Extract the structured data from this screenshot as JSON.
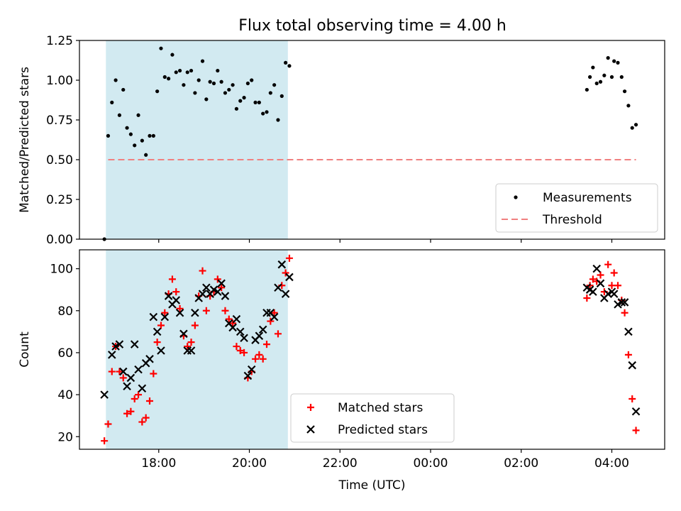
{
  "title": "Flux total observing time = 4.00 h",
  "chart_data": [
    {
      "type": "scatter",
      "ylabel": "Matched/Predicted stars",
      "x_range": [
        "16:15",
        "05:10"
      ],
      "ylim": [
        0,
        1.25
      ],
      "yticks": [
        0.0,
        0.25,
        0.5,
        0.75,
        1.0,
        1.25
      ],
      "ytick_labels": [
        "0.00",
        "0.25",
        "0.50",
        "0.75",
        "1.00",
        "1.25"
      ],
      "shaded_interval": [
        "16:50",
        "20:51"
      ],
      "shaded_color": "#add8e6",
      "legend_position": "lower-right",
      "series": [
        {
          "name": "Measurements",
          "kind": "dot",
          "color": "#000000",
          "points": [
            [
              "16:48",
              0.0
            ],
            [
              "16:53",
              0.65
            ],
            [
              "16:58",
              0.86
            ],
            [
              "17:03",
              1.0
            ],
            [
              "17:08",
              0.78
            ],
            [
              "17:13",
              0.94
            ],
            [
              "17:18",
              0.7
            ],
            [
              "17:23",
              0.66
            ],
            [
              "17:28",
              0.59
            ],
            [
              "17:33",
              0.78
            ],
            [
              "17:38",
              0.62
            ],
            [
              "17:43",
              0.53
            ],
            [
              "17:48",
              0.65
            ],
            [
              "17:53",
              0.65
            ],
            [
              "17:58",
              0.93
            ],
            [
              "18:03",
              1.2
            ],
            [
              "18:08",
              1.02
            ],
            [
              "18:13",
              1.01
            ],
            [
              "18:18",
              1.16
            ],
            [
              "18:23",
              1.05
            ],
            [
              "18:28",
              1.06
            ],
            [
              "18:33",
              0.97
            ],
            [
              "18:38",
              1.05
            ],
            [
              "18:43",
              1.06
            ],
            [
              "18:48",
              0.92
            ],
            [
              "18:53",
              1.0
            ],
            [
              "18:58",
              1.12
            ],
            [
              "19:03",
              0.88
            ],
            [
              "19:08",
              0.99
            ],
            [
              "19:13",
              0.98
            ],
            [
              "19:18",
              1.06
            ],
            [
              "19:23",
              0.99
            ],
            [
              "19:28",
              0.92
            ],
            [
              "19:33",
              0.94
            ],
            [
              "19:38",
              0.97
            ],
            [
              "19:43",
              0.82
            ],
            [
              "19:48",
              0.87
            ],
            [
              "19:53",
              0.89
            ],
            [
              "19:58",
              0.98
            ],
            [
              "20:03",
              1.0
            ],
            [
              "20:08",
              0.86
            ],
            [
              "20:13",
              0.86
            ],
            [
              "20:18",
              0.79
            ],
            [
              "20:23",
              0.8
            ],
            [
              "20:28",
              0.92
            ],
            [
              "20:33",
              0.97
            ],
            [
              "20:38",
              0.75
            ],
            [
              "20:43",
              0.9
            ],
            [
              "20:48",
              1.11
            ],
            [
              "20:53",
              1.09
            ],
            [
              "03:27",
              0.94
            ],
            [
              "03:31",
              1.02
            ],
            [
              "03:35",
              1.08
            ],
            [
              "03:40",
              0.98
            ],
            [
              "03:45",
              0.99
            ],
            [
              "03:50",
              1.03
            ],
            [
              "03:55",
              1.14
            ],
            [
              "04:00",
              1.02
            ],
            [
              "04:03",
              1.12
            ],
            [
              "04:08",
              1.11
            ],
            [
              "04:13",
              1.02
            ],
            [
              "04:17",
              0.93
            ],
            [
              "04:22",
              0.84
            ],
            [
              "04:27",
              0.7
            ],
            [
              "04:32",
              0.72
            ]
          ]
        },
        {
          "name": "Threshold",
          "kind": "dashed-line",
          "color": "#f08080",
          "points": [
            [
              "16:53",
              0.5
            ],
            [
              "04:32",
              0.5
            ]
          ]
        }
      ]
    },
    {
      "type": "scatter",
      "xlabel": "Time (UTC)",
      "ylabel": "Count",
      "x_range": [
        "16:15",
        "05:10"
      ],
      "xticks": [
        "18:00",
        "20:00",
        "22:00",
        "00:00",
        "02:00",
        "04:00"
      ],
      "ylim": [
        14,
        109
      ],
      "yticks": [
        20,
        40,
        60,
        80,
        100
      ],
      "ytick_labels": [
        "20",
        "40",
        "60",
        "80",
        "100"
      ],
      "shaded_interval": [
        "16:50",
        "20:51"
      ],
      "shaded_color": "#add8e6",
      "legend_position": "lower-center",
      "series": [
        {
          "name": "Matched stars",
          "kind": "plus",
          "color": "#ff0000",
          "points": [
            [
              "16:48",
              18
            ],
            [
              "16:53",
              26
            ],
            [
              "16:58",
              51
            ],
            [
              "17:03",
              63
            ],
            [
              "17:08",
              51
            ],
            [
              "17:13",
              48
            ],
            [
              "17:18",
              31
            ],
            [
              "17:23",
              32
            ],
            [
              "17:28",
              38
            ],
            [
              "17:33",
              40
            ],
            [
              "17:38",
              27
            ],
            [
              "17:43",
              29
            ],
            [
              "17:48",
              37
            ],
            [
              "17:53",
              50
            ],
            [
              "17:58",
              65
            ],
            [
              "18:03",
              73
            ],
            [
              "18:08",
              79
            ],
            [
              "18:13",
              88
            ],
            [
              "18:18",
              95
            ],
            [
              "18:23",
              89
            ],
            [
              "18:28",
              81
            ],
            [
              "18:33",
              68
            ],
            [
              "18:38",
              63
            ],
            [
              "18:43",
              65
            ],
            [
              "18:48",
              73
            ],
            [
              "18:53",
              87
            ],
            [
              "18:58",
              99
            ],
            [
              "19:03",
              80
            ],
            [
              "19:08",
              87
            ],
            [
              "19:13",
              89
            ],
            [
              "19:18",
              95
            ],
            [
              "19:23",
              91
            ],
            [
              "19:28",
              80
            ],
            [
              "19:33",
              76
            ],
            [
              "19:38",
              74
            ],
            [
              "19:43",
              63
            ],
            [
              "19:48",
              61
            ],
            [
              "19:53",
              60
            ],
            [
              "19:58",
              48
            ],
            [
              "20:03",
              51
            ],
            [
              "20:08",
              57
            ],
            [
              "20:13",
              59
            ],
            [
              "20:18",
              57
            ],
            [
              "20:23",
              64
            ],
            [
              "20:28",
              75
            ],
            [
              "20:33",
              79
            ],
            [
              "20:38",
              69
            ],
            [
              "20:43",
              92
            ],
            [
              "20:48",
              98
            ],
            [
              "20:53",
              105
            ],
            [
              "03:27",
              86
            ],
            [
              "03:31",
              92
            ],
            [
              "03:35",
              95
            ],
            [
              "03:40",
              94
            ],
            [
              "03:45",
              97
            ],
            [
              "03:50",
              89
            ],
            [
              "03:55",
              102
            ],
            [
              "04:00",
              92
            ],
            [
              "04:03",
              98
            ],
            [
              "04:08",
              92
            ],
            [
              "04:13",
              85
            ],
            [
              "04:17",
              79
            ],
            [
              "04:22",
              59
            ],
            [
              "04:27",
              38
            ],
            [
              "04:32",
              23
            ]
          ]
        },
        {
          "name": "Predicted stars",
          "kind": "x",
          "color": "#000000",
          "points": [
            [
              "16:48",
              40
            ],
            [
              "16:58",
              59
            ],
            [
              "17:03",
              63
            ],
            [
              "17:08",
              64
            ],
            [
              "17:13",
              51
            ],
            [
              "17:18",
              44
            ],
            [
              "17:23",
              48
            ],
            [
              "17:28",
              64
            ],
            [
              "17:33",
              52
            ],
            [
              "17:38",
              43
            ],
            [
              "17:43",
              55
            ],
            [
              "17:48",
              57
            ],
            [
              "17:53",
              77
            ],
            [
              "17:58",
              70
            ],
            [
              "18:03",
              61
            ],
            [
              "18:08",
              77
            ],
            [
              "18:13",
              87
            ],
            [
              "18:18",
              83
            ],
            [
              "18:23",
              85
            ],
            [
              "18:28",
              79
            ],
            [
              "18:33",
              69
            ],
            [
              "18:38",
              61
            ],
            [
              "18:43",
              61
            ],
            [
              "18:48",
              79
            ],
            [
              "18:53",
              86
            ],
            [
              "18:58",
              88
            ],
            [
              "19:03",
              91
            ],
            [
              "19:08",
              88
            ],
            [
              "19:13",
              90
            ],
            [
              "19:18",
              89
            ],
            [
              "19:23",
              93
            ],
            [
              "19:28",
              87
            ],
            [
              "19:33",
              74
            ],
            [
              "19:38",
              72
            ],
            [
              "19:43",
              76
            ],
            [
              "19:48",
              70
            ],
            [
              "19:53",
              67
            ],
            [
              "19:58",
              49
            ],
            [
              "20:03",
              52
            ],
            [
              "20:08",
              66
            ],
            [
              "20:13",
              68
            ],
            [
              "20:18",
              71
            ],
            [
              "20:23",
              79
            ],
            [
              "20:28",
              79
            ],
            [
              "20:33",
              77
            ],
            [
              "20:38",
              91
            ],
            [
              "20:43",
              102
            ],
            [
              "20:48",
              88
            ],
            [
              "20:53",
              96
            ],
            [
              "03:27",
              91
            ],
            [
              "03:31",
              90
            ],
            [
              "03:35",
              89
            ],
            [
              "03:40",
              100
            ],
            [
              "03:45",
              93
            ],
            [
              "03:50",
              86
            ],
            [
              "03:55",
              88
            ],
            [
              "04:00",
              89
            ],
            [
              "04:03",
              88
            ],
            [
              "04:08",
              83
            ],
            [
              "04:13",
              84
            ],
            [
              "04:17",
              84
            ],
            [
              "04:22",
              70
            ],
            [
              "04:27",
              54
            ],
            [
              "04:32",
              32
            ]
          ]
        }
      ]
    }
  ]
}
